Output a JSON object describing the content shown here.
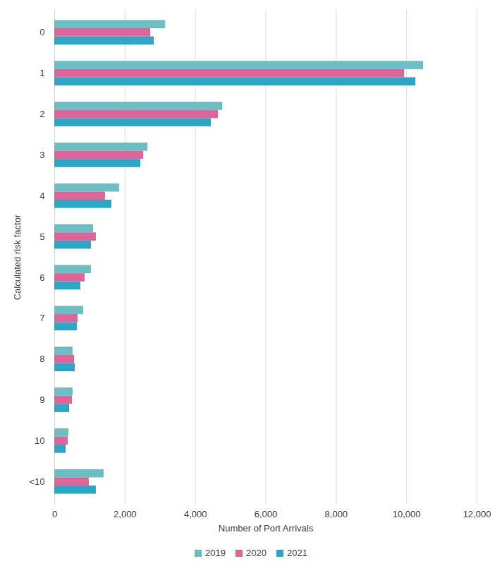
{
  "chart_data": {
    "type": "bar",
    "orientation": "horizontal",
    "categories": [
      "0",
      "1",
      "2",
      "3",
      "4",
      "5",
      "6",
      "7",
      "8",
      "9",
      "10",
      "<10"
    ],
    "series": [
      {
        "name": "2019",
        "color": "#6bbfc2",
        "values": [
          3150,
          10480,
          4770,
          2645,
          1840,
          1100,
          1040,
          820,
          520,
          520,
          400,
          1400
        ]
      },
      {
        "name": "2020",
        "color": "#e0649a",
        "values": [
          2725,
          9940,
          4650,
          2525,
          1440,
          1180,
          860,
          660,
          560,
          500,
          380,
          980
        ]
      },
      {
        "name": "2021",
        "color": "#2ea6c6",
        "values": [
          2825,
          10260,
          4450,
          2445,
          1620,
          1040,
          740,
          640,
          580,
          420,
          320,
          1180
        ]
      }
    ],
    "xlabel": "Number of Port Arrivals",
    "ylabel": "Calculated risk factor",
    "xlim": [
      0,
      12000
    ],
    "xticks": [
      0,
      2000,
      4000,
      6000,
      8000,
      10000,
      12000
    ],
    "grid": true,
    "legend": "bottom"
  }
}
